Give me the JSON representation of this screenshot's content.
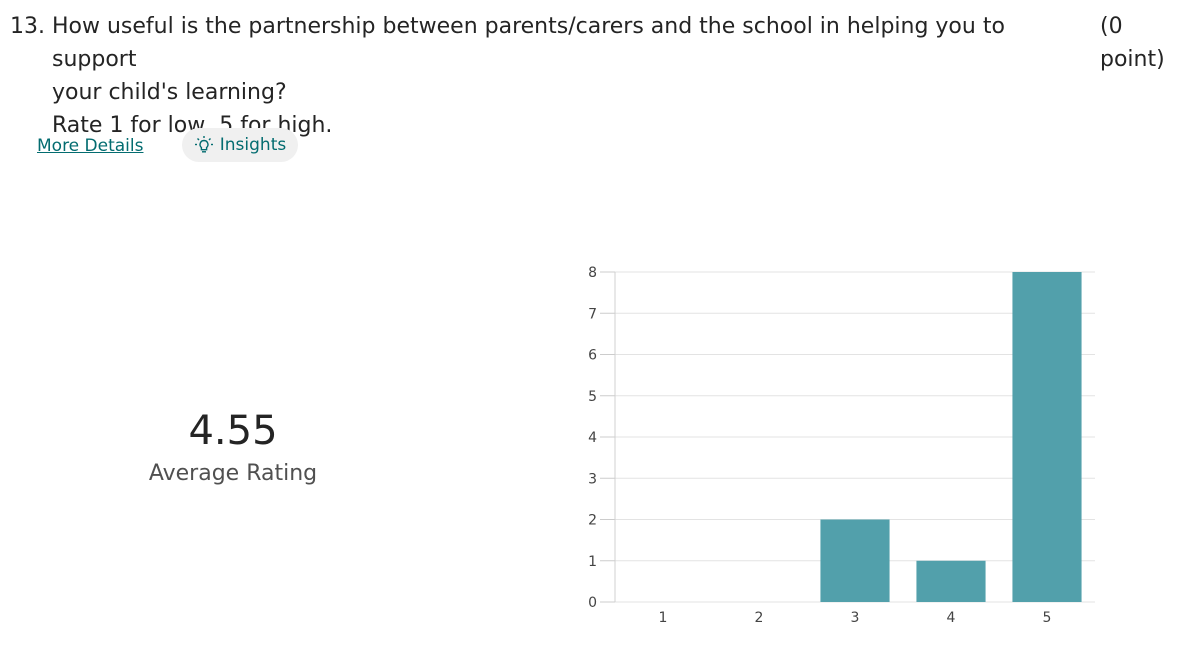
{
  "question": {
    "number": "13.",
    "lines": [
      "How useful is the partnership between parents/carers and the school in helping you to support",
      "your child's learning?",
      "Rate 1 for low, 5 for high."
    ],
    "points": [
      "(0",
      "point)"
    ]
  },
  "links": {
    "more_details": "More Details",
    "insights": "Insights"
  },
  "summary": {
    "average_value": "4.55",
    "average_label": "Average Rating"
  },
  "colors": {
    "bar": "#52a0ab",
    "link": "#036c70",
    "grid": "#e3e3e3"
  },
  "icons": [
    "lightbulb-icon"
  ],
  "chart_data": {
    "type": "bar",
    "categories": [
      "1",
      "2",
      "3",
      "4",
      "5"
    ],
    "values": [
      0,
      0,
      2,
      1,
      8
    ],
    "ylim": [
      0,
      8
    ],
    "yticks": [
      0,
      1,
      2,
      3,
      4,
      5,
      6,
      7,
      8
    ],
    "grid": true,
    "title": "",
    "xlabel": "",
    "ylabel": ""
  }
}
